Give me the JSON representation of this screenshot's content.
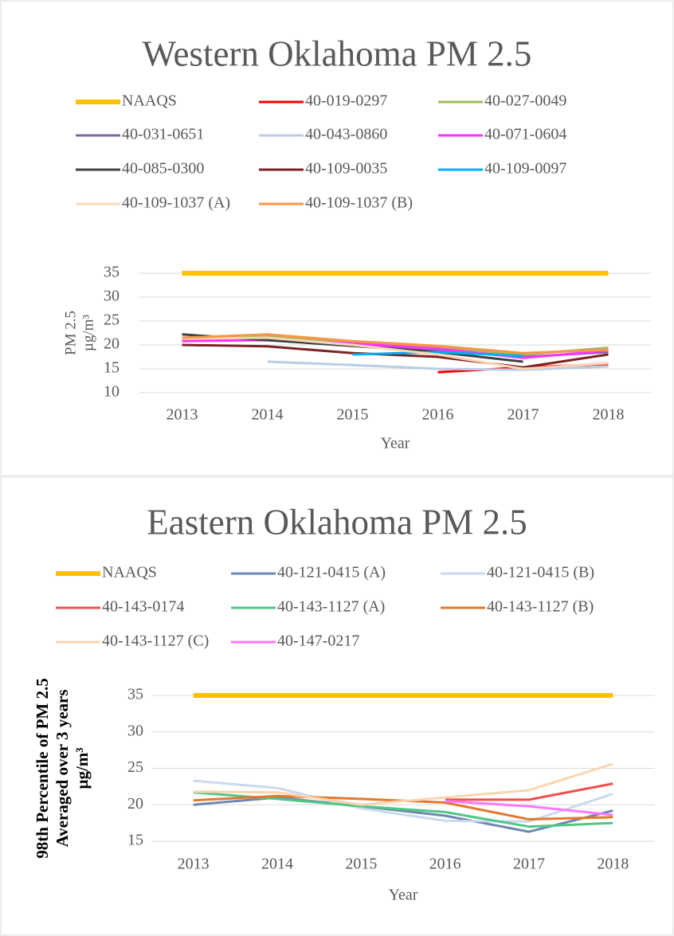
{
  "chart_data": [
    {
      "type": "line",
      "title": "Western Oklahoma PM 2.5",
      "ylabel": [
        "PM 2.5",
        "µg/m³"
      ],
      "xlabel": "Year",
      "categories": [
        "2013",
        "2014",
        "2015",
        "2016",
        "2017",
        "2018"
      ],
      "ylim": [
        10,
        35
      ],
      "yticks": [
        10,
        15,
        20,
        25,
        30,
        35
      ],
      "grid": true,
      "series": [
        {
          "name": "NAAQS",
          "color": "#FFC000",
          "values": [
            35,
            35,
            35,
            35,
            35,
            35
          ]
        },
        {
          "name": "40-019-0297",
          "color": "#FF0000",
          "values": [
            null,
            null,
            null,
            14.3,
            15.3,
            16
          ]
        },
        {
          "name": "40-027-0049",
          "color": "#9BBB59",
          "values": [
            21.5,
            21.8,
            20.5,
            19.5,
            18,
            19.4
          ]
        },
        {
          "name": "40-031-0651",
          "color": "#8064A2",
          "values": [
            21,
            21,
            20,
            19,
            17.5,
            18.5
          ]
        },
        {
          "name": "40-043-0860",
          "color": "#B9CDE5",
          "values": [
            null,
            16.5,
            15.8,
            15,
            14.8,
            15.5
          ]
        },
        {
          "name": "40-071-0604",
          "color": "#FF33FF",
          "values": [
            20.8,
            21,
            20.3,
            19.2,
            17.3,
            18.8
          ]
        },
        {
          "name": "40-085-0300",
          "color": "#404040",
          "values": [
            22.2,
            21,
            19.8,
            18.5,
            16.5,
            null
          ]
        },
        {
          "name": "40-109-0035",
          "color": "#7B2222",
          "values": [
            20,
            19.7,
            18.3,
            17.5,
            15.3,
            18
          ]
        },
        {
          "name": "40-109-0097",
          "color": "#00B0F0",
          "values": [
            null,
            null,
            18,
            18.5,
            17.7,
            null
          ]
        },
        {
          "name": "40-109-1037 (A)",
          "color": "#FCD5B5",
          "values": [
            21.3,
            21.5,
            20,
            18,
            15,
            16.2
          ]
        },
        {
          "name": "40-109-1037 (B)",
          "color": "#F79646",
          "values": [
            21.5,
            22.2,
            20.8,
            19.8,
            18.3,
            19
          ]
        }
      ]
    },
    {
      "type": "line",
      "title": "Eastern Oklahoma PM 2.5",
      "ylabel": [
        "98th Percentile of PM 2.5",
        "Averaged over 3 years",
        "µg/m³"
      ],
      "xlabel": "Year",
      "categories": [
        "2013",
        "2014",
        "2015",
        "2016",
        "2017",
        "2018"
      ],
      "ylim": [
        15,
        35
      ],
      "yticks": [
        15,
        20,
        25,
        30,
        35
      ],
      "grid": true,
      "series": [
        {
          "name": "NAAQS",
          "color": "#FFC000",
          "values": [
            35,
            35,
            35,
            35,
            35,
            35
          ]
        },
        {
          "name": "40-121-0415 (A)",
          "color": "#6F87B0",
          "values": [
            20,
            21,
            19.8,
            18.5,
            16.3,
            19.2
          ]
        },
        {
          "name": "40-121-0415 (B)",
          "color": "#C9DAED",
          "values": [
            23.3,
            22.3,
            19.5,
            17.8,
            17.7,
            21.5
          ]
        },
        {
          "name": "40-143-0174",
          "color": "#F04F4F",
          "values": [
            null,
            null,
            null,
            20.7,
            20.7,
            22.9
          ]
        },
        {
          "name": "40-143-1127 (A)",
          "color": "#4FC785",
          "values": [
            21.7,
            20.8,
            19.8,
            19,
            17,
            17.5
          ]
        },
        {
          "name": "40-143-1127 (B)",
          "color": "#E3782C",
          "values": [
            20.6,
            21.2,
            20.8,
            20.3,
            18,
            18.3
          ]
        },
        {
          "name": "40-143-1127 (C)",
          "color": "#FAD5B0",
          "values": [
            21.8,
            21.7,
            20,
            21,
            22,
            25.6
          ]
        },
        {
          "name": "40-147-0217",
          "color": "#FF77FF",
          "values": [
            null,
            null,
            null,
            20.5,
            19.8,
            18.6
          ]
        }
      ]
    }
  ]
}
